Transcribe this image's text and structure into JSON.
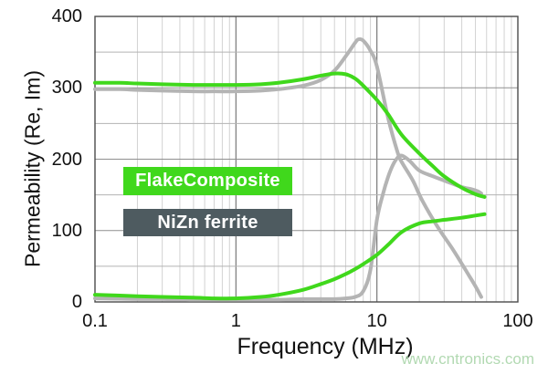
{
  "watermark": "www.cntronics.com",
  "legend": [
    {
      "label": "FlakeComposite",
      "bg": "#40d81c",
      "text_color": "#ffffff"
    },
    {
      "label": "NiZn ferrite",
      "bg": "#4e5b60",
      "text_color": "#ffffff"
    }
  ],
  "colors": {
    "flake_curve": "#40d81c",
    "nizn_curve": "#b4b4b4",
    "grid_minor_v": "#d2d2d2",
    "grid_major_v": "#787878",
    "grid_h_50": "#b3b3b3",
    "grid_h_100": "#8f8f8f",
    "plot_border": "#4b4b4b"
  },
  "chart_data": {
    "type": "line",
    "title": "",
    "xlabel": "Frequency (MHz)",
    "ylabel": "Permeability (Re, Im)",
    "x_scale": "log",
    "xlim": [
      0.1,
      100
    ],
    "ylim": [
      0,
      400
    ],
    "x_ticks": [
      "0.1",
      "1",
      "10",
      "100"
    ],
    "y_ticks": [
      0,
      100,
      200,
      300,
      400
    ],
    "grid": {
      "x_minor_log": true,
      "y_step": 50,
      "legend_position": "inside-left"
    },
    "series": [
      {
        "name": "NiZn ferrite Re",
        "color": "#b4b4b4",
        "x": [
          0.1,
          0.15,
          0.2,
          0.3,
          0.5,
          0.7,
          1,
          1.5,
          2,
          3,
          4,
          5,
          6,
          7,
          7.4,
          8,
          9,
          10,
          12,
          14,
          15,
          18,
          21,
          27,
          35,
          45,
          50,
          55
        ],
        "y": [
          298,
          298,
          297,
          296,
          295,
          295,
          295,
          296,
          298,
          303,
          311,
          324,
          344,
          363,
          368,
          366,
          352,
          330,
          258,
          210,
          196,
          170,
          142,
          105,
          72,
          37,
          22,
          7
        ]
      },
      {
        "name": "NiZn ferrite Im",
        "color": "#b4b4b4",
        "x": [
          0.1,
          0.2,
          0.3,
          0.5,
          1,
          2,
          3,
          4,
          5,
          6,
          7,
          8,
          9,
          10,
          11,
          12,
          13,
          14,
          15,
          17,
          20,
          25,
          30,
          40,
          47,
          52,
          55
        ],
        "y": [
          5,
          4,
          4,
          3,
          3,
          3,
          4,
          4,
          4,
          5,
          7,
          15,
          45,
          115,
          150,
          175,
          192,
          202,
          205,
          198,
          184,
          176,
          170,
          161,
          158,
          155,
          152
        ]
      },
      {
        "name": "FlakeComposite Re",
        "color": "#40d81c",
        "x": [
          0.1,
          0.15,
          0.2,
          0.3,
          0.5,
          0.7,
          1,
          1.5,
          2,
          3,
          4,
          5,
          6,
          7,
          8,
          10,
          12,
          15,
          20,
          25,
          30,
          40,
          50,
          58
        ],
        "y": [
          307,
          307,
          306,
          305,
          304,
          304,
          304,
          305,
          307,
          312,
          317,
          320,
          319,
          313,
          303,
          283,
          263,
          234,
          208,
          190,
          176,
          160,
          151,
          147
        ]
      },
      {
        "name": "FlakeComposite Im",
        "color": "#40d81c",
        "x": [
          0.1,
          0.15,
          0.2,
          0.3,
          0.5,
          0.7,
          1,
          1.5,
          2,
          3,
          4,
          5,
          6,
          7,
          8,
          10,
          12,
          15,
          20,
          25,
          30,
          40,
          50,
          58
        ],
        "y": [
          10,
          9,
          8,
          7,
          6,
          5,
          5,
          7,
          10,
          17,
          25,
          32,
          39,
          46,
          53,
          66,
          80,
          98,
          110,
          113,
          115,
          118,
          121,
          123
        ]
      }
    ]
  }
}
